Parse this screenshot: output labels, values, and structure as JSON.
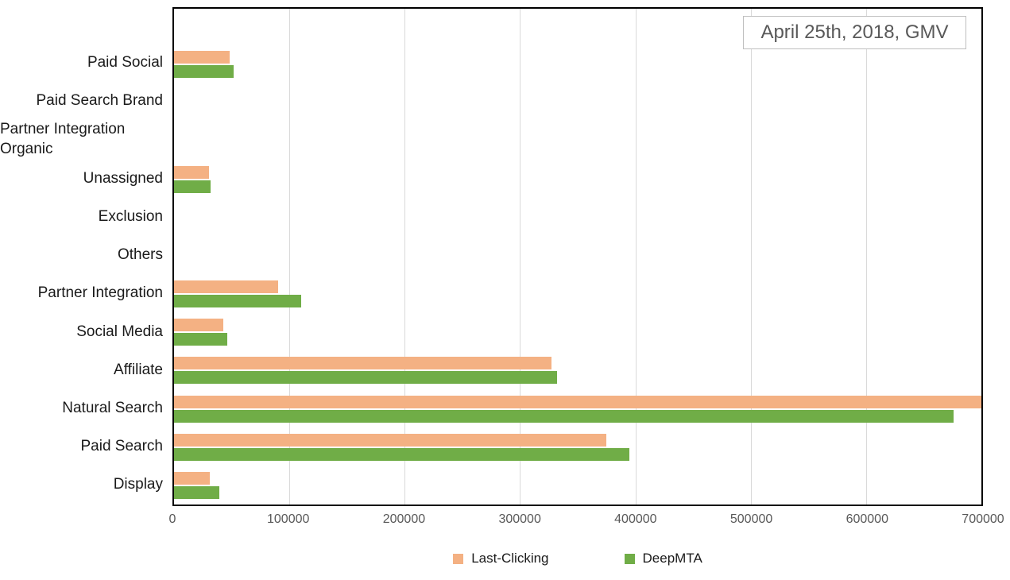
{
  "title_box": {
    "text": "April 25th, 2018, GMV"
  },
  "chart_data": {
    "type": "bar",
    "orientation": "horizontal",
    "title": "April 25th, 2018, GMV",
    "categories": [
      "Paid Social",
      "Paid Search Brand",
      "Partner Integration Organic",
      "Unassigned",
      "Exclusion",
      "Others",
      "Partner Integration",
      "Social Media",
      "Affiliate",
      "Natural Search",
      "Paid Search",
      "Display"
    ],
    "series": [
      {
        "name": "Last-Clicking",
        "color": "#F4B183",
        "values": [
          48000,
          0,
          0,
          30000,
          0,
          0,
          90000,
          42500,
          327000,
          700000,
          375000,
          31000
        ]
      },
      {
        "name": "DeepMTA",
        "color": "#70AD47",
        "values": [
          52000,
          0,
          0,
          31500,
          0,
          0,
          110000,
          46000,
          332000,
          676000,
          395000,
          39000
        ]
      }
    ],
    "xlim": [
      0,
      700000
    ],
    "x_ticks": [
      0,
      100000,
      200000,
      300000,
      400000,
      500000,
      600000,
      700000
    ],
    "grid": true,
    "legend_position": "bottom"
  },
  "legend": {
    "items": [
      {
        "label": "Last-Clicking",
        "color": "#F4B183"
      },
      {
        "label": "DeepMTA",
        "color": "#70AD47"
      }
    ]
  },
  "colors": {
    "plot_border": "#000000",
    "gridline": "#d9d9d9",
    "tick_text": "#595959",
    "title_text": "#595959",
    "title_border": "#bfbfbf",
    "category_text": "#1a1a1a"
  }
}
